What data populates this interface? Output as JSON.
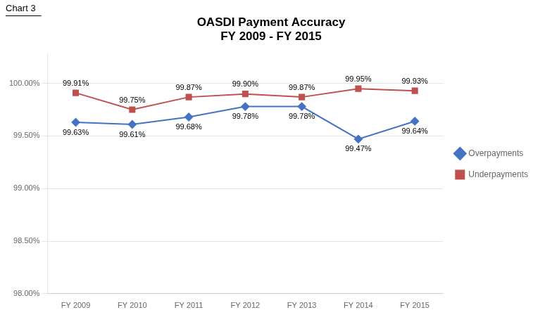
{
  "chart_data": {
    "type": "line",
    "title": "OASDI Payment Accuracy",
    "subtitle": "FY 2009 - FY 2015",
    "annotations": [
      "Chart 3"
    ],
    "categories": [
      "FY 2009",
      "FY 2010",
      "FY 2011",
      "FY 2012",
      "FY 2013",
      "FY 2014",
      "FY 2015"
    ],
    "series": [
      {
        "name": "Overpayments",
        "color": "#4472C4",
        "marker": "diamond",
        "values": [
          99.63,
          99.61,
          99.68,
          99.78,
          99.78,
          99.47,
          99.64
        ],
        "value_labels": [
          "99.63%",
          "99.61%",
          "99.68%",
          "99.78%",
          "99.78%",
          "99.47%",
          "99.64%"
        ]
      },
      {
        "name": "Underpayments",
        "color": "#C0504D",
        "marker": "square",
        "values": [
          99.91,
          99.75,
          99.87,
          99.9,
          99.87,
          99.95,
          99.93
        ],
        "value_labels": [
          "99.91%",
          "99.75%",
          "99.87%",
          "99.90%",
          "99.87%",
          "99.95%",
          "99.93%"
        ]
      }
    ],
    "ylim": [
      98.0,
      100.28
    ],
    "yticks": [
      {
        "value": 98.0,
        "label": "98.00%"
      },
      {
        "value": 98.5,
        "label": "98.50%"
      },
      {
        "value": 99.0,
        "label": "99.00%"
      },
      {
        "value": 99.5,
        "label": "99.50%"
      },
      {
        "value": 100.0,
        "label": "100.00%"
      }
    ],
    "grid": "y",
    "legend": "right",
    "data_labels": true
  }
}
